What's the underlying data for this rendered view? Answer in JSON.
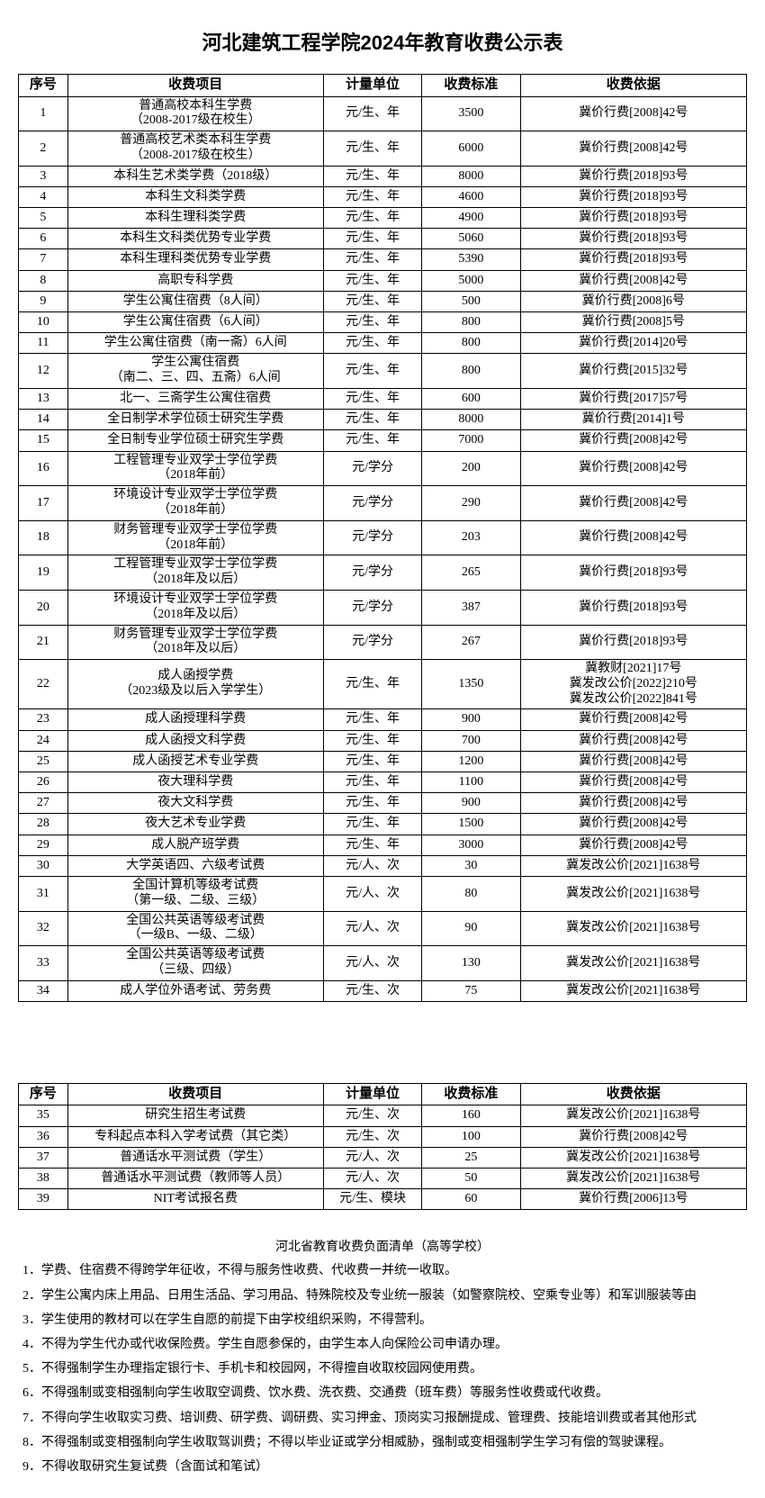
{
  "title": "河北建筑工程学院2024年教育收费公示表",
  "columns": [
    "序号",
    "收费项目",
    "计量单位",
    "收费标准",
    "收费依据"
  ],
  "table1": [
    {
      "idx": "1",
      "item": "普通高校本科生学费\n（2008-2017级在校生）",
      "unit": "元/生、年",
      "price": "3500",
      "basis": "冀价行费[2008]42号"
    },
    {
      "idx": "2",
      "item": "普通高校艺术类本科生学费\n（2008-2017级在校生）",
      "unit": "元/生、年",
      "price": "6000",
      "basis": "冀价行费[2008]42号"
    },
    {
      "idx": "3",
      "item": "本科生艺术类学费（2018级）",
      "unit": "元/生、年",
      "price": "8000",
      "basis": "冀价行费[2018]93号"
    },
    {
      "idx": "4",
      "item": "本科生文科类学费",
      "unit": "元/生、年",
      "price": "4600",
      "basis": "冀价行费[2018]93号"
    },
    {
      "idx": "5",
      "item": "本科生理科类学费",
      "unit": "元/生、年",
      "price": "4900",
      "basis": "冀价行费[2018]93号"
    },
    {
      "idx": "6",
      "item": "本科生文科类优势专业学费",
      "unit": "元/生、年",
      "price": "5060",
      "basis": "冀价行费[2018]93号"
    },
    {
      "idx": "7",
      "item": "本科生理科类优势专业学费",
      "unit": "元/生、年",
      "price": "5390",
      "basis": "冀价行费[2018]93号"
    },
    {
      "idx": "8",
      "item": "高职专科学费",
      "unit": "元/生、年",
      "price": "5000",
      "basis": "冀价行费[2008]42号"
    },
    {
      "idx": "9",
      "item": "学生公寓住宿费（8人间）",
      "unit": "元/生、年",
      "price": "500",
      "basis": "冀价行费[2008]6号"
    },
    {
      "idx": "10",
      "item": "学生公寓住宿费（6人间）",
      "unit": "元/生、年",
      "price": "800",
      "basis": "冀价行费[2008]5号"
    },
    {
      "idx": "11",
      "item": "学生公寓住宿费（南一斋）6人间",
      "unit": "元/生、年",
      "price": "800",
      "basis": "冀价行费[2014]20号"
    },
    {
      "idx": "12",
      "item": "学生公寓住宿费\n（南二、三、四、五斋）6人间",
      "unit": "元/生、年",
      "price": "800",
      "basis": "冀价行费[2015]32号"
    },
    {
      "idx": "13",
      "item": "北一、三斋学生公寓住宿费",
      "unit": "元/生、年",
      "price": "600",
      "basis": "冀价行费[2017]57号"
    },
    {
      "idx": "14",
      "item": "全日制学术学位硕士研究生学费",
      "unit": "元/生、年",
      "price": "8000",
      "basis": "冀价行费[2014]1号"
    },
    {
      "idx": "15",
      "item": "全日制专业学位硕士研究生学费",
      "unit": "元/生、年",
      "price": "7000",
      "basis": "冀价行费[2008]42号"
    },
    {
      "idx": "16",
      "item": "工程管理专业双学士学位学费\n（2018年前）",
      "unit": "元/学分",
      "price": "200",
      "basis": "冀价行费[2008]42号"
    },
    {
      "idx": "17",
      "item": "环境设计专业双学士学位学费\n（2018年前）",
      "unit": "元/学分",
      "price": "290",
      "basis": "冀价行费[2008]42号"
    },
    {
      "idx": "18",
      "item": "财务管理专业双学士学位学费\n（2018年前）",
      "unit": "元/学分",
      "price": "203",
      "basis": "冀价行费[2008]42号"
    },
    {
      "idx": "19",
      "item": "工程管理专业双学士学位学费\n（2018年及以后）",
      "unit": "元/学分",
      "price": "265",
      "basis": "冀价行费[2018]93号"
    },
    {
      "idx": "20",
      "item": "环境设计专业双学士学位学费\n（2018年及以后）",
      "unit": "元/学分",
      "price": "387",
      "basis": "冀价行费[2018]93号"
    },
    {
      "idx": "21",
      "item": "财务管理专业双学士学位学费\n（2018年及以后）",
      "unit": "元/学分",
      "price": "267",
      "basis": "冀价行费[2018]93号"
    },
    {
      "idx": "22",
      "item": "成人函授学费\n（2023级及以后入学学生）",
      "unit": "元/生、年",
      "price": "1350",
      "basis": "冀教财[2021]17号\n冀发改公价[2022]210号\n冀发改公价[2022]841号"
    },
    {
      "idx": "23",
      "item": "成人函授理科学费",
      "unit": "元/生、年",
      "price": "900",
      "basis": "冀价行费[2008]42号"
    },
    {
      "idx": "24",
      "item": "成人函授文科学费",
      "unit": "元/生、年",
      "price": "700",
      "basis": "冀价行费[2008]42号"
    },
    {
      "idx": "25",
      "item": "成人函授艺术专业学费",
      "unit": "元/生、年",
      "price": "1200",
      "basis": "冀价行费[2008]42号"
    },
    {
      "idx": "26",
      "item": "夜大理科学费",
      "unit": "元/生、年",
      "price": "1100",
      "basis": "冀价行费[2008]42号"
    },
    {
      "idx": "27",
      "item": "夜大文科学费",
      "unit": "元/生、年",
      "price": "900",
      "basis": "冀价行费[2008]42号"
    },
    {
      "idx": "28",
      "item": "夜大艺术专业学费",
      "unit": "元/生、年",
      "price": "1500",
      "basis": "冀价行费[2008]42号"
    },
    {
      "idx": "29",
      "item": "成人脱产班学费",
      "unit": "元/生、年",
      "price": "3000",
      "basis": "冀价行费[2008]42号"
    },
    {
      "idx": "30",
      "item": "大学英语四、六级考试费",
      "unit": "元/人、次",
      "price": "30",
      "basis": "冀发改公价[2021]1638号"
    },
    {
      "idx": "31",
      "item": "全国计算机等级考试费\n（第一级、二级、三级）",
      "unit": "元/人、次",
      "price": "80",
      "basis": "冀发改公价[2021]1638号"
    },
    {
      "idx": "32",
      "item": "全国公共英语等级考试费\n（一级B、一级、二级）",
      "unit": "元/人、次",
      "price": "90",
      "basis": "冀发改公价[2021]1638号"
    },
    {
      "idx": "33",
      "item": "全国公共英语等级考试费\n（三级、四级）",
      "unit": "元/人、次",
      "price": "130",
      "basis": "冀发改公价[2021]1638号"
    },
    {
      "idx": "34",
      "item": "成人学位外语考试、劳务费",
      "unit": "元/生、次",
      "price": "75",
      "basis": "冀发改公价[2021]1638号"
    }
  ],
  "table2": [
    {
      "idx": "35",
      "item": "研究生招生考试费",
      "unit": "元/生、次",
      "price": "160",
      "basis": "冀发改公价[2021]1638号"
    },
    {
      "idx": "36",
      "item": "专科起点本科入学考试费（其它类）",
      "unit": "元/生、次",
      "price": "100",
      "basis": "冀价行费[2008]42号"
    },
    {
      "idx": "37",
      "item": "普通话水平测试费（学生）",
      "unit": "元/人、次",
      "price": "25",
      "basis": "冀发改公价[2021]1638号"
    },
    {
      "idx": "38",
      "item": "普通话水平测试费（教师等人员）",
      "unit": "元/人、次",
      "price": "50",
      "basis": "冀发改公价[2021]1638号"
    },
    {
      "idx": "39",
      "item": "NIT考试报名费",
      "unit": "元/生、模块",
      "price": "60",
      "basis": "冀价行费[2006]13号"
    }
  ],
  "notes_title": "河北省教育收费负面清单（高等学校）",
  "notes": [
    "1．学费、住宿费不得跨学年征收，不得与服务性收费、代收费一并统一收取。",
    "2．学生公寓内床上用品、日用生活品、学习用品、特殊院校及专业统一服装（如警察院校、空乘专业等）和军训服装等由",
    "3．学生使用的教材可以在学生自愿的前提下由学校组织采购，不得营利。",
    "4．不得为学生代办或代收保险费。学生自愿参保的，由学生本人向保险公司申请办理。",
    "5．不得强制学生办理指定银行卡、手机卡和校园网，不得擅自收取校园网使用费。",
    "6．不得强制或变相强制向学生收取空调费、饮水费、洗衣费、交通费（班车费）等服务性收费或代收费。",
    "7．不得向学生收取实习费、培训费、研学费、调研费、实习押金、顶岗实习报酬提成、管理费、技能培训费或者其他形式",
    "8．不得强制或变相强制向学生收取驾训费；不得以毕业证或学分相威胁，强制或变相强制学生学习有偿的驾驶课程。",
    "9．不得收取研究生复试费（含面试和笔试）"
  ],
  "style": {
    "title_fontsize": 22,
    "th_fontsize": 15,
    "td_fontsize": 14,
    "notes_fontsize": 14,
    "border_color": "#000000",
    "background_color": "#ffffff",
    "text_color": "#000000"
  }
}
